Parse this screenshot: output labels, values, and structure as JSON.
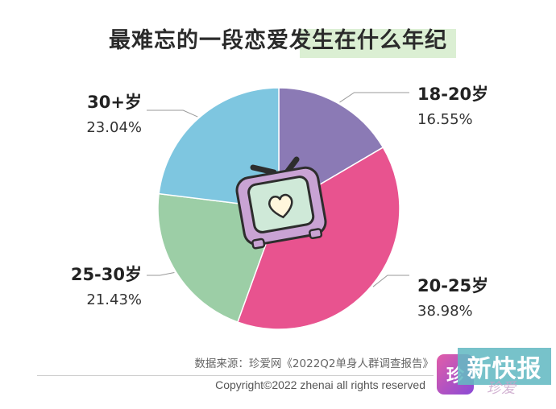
{
  "title": "最难忘的一段恋爱发生在什么年纪",
  "source": "数据来源：珍爱网《2022Q2单身人群调查报告》",
  "copyright": "Copyright©2022  zhenai  all rights reserved",
  "brand_badge": "珍",
  "watermark": "新快报",
  "watermark_sub": "珍爱",
  "center_icon": "tv-heart-icon",
  "colors": {
    "18-20": "#8b7ab5",
    "20-25": "#e8538f",
    "25-30": "#9ccea6",
    "30+": "#7ec6e0"
  },
  "chart_data": {
    "type": "pie",
    "title": "最难忘的一段恋爱发生在什么年纪",
    "categories": [
      "18-20岁",
      "20-25岁",
      "25-30岁",
      "30+岁"
    ],
    "values": [
      16.55,
      38.98,
      21.43,
      23.04
    ],
    "labels": [
      "16.55%",
      "38.98%",
      "21.43%",
      "23.04%"
    ],
    "start": "12 o'clock",
    "direction": "clockwise"
  }
}
